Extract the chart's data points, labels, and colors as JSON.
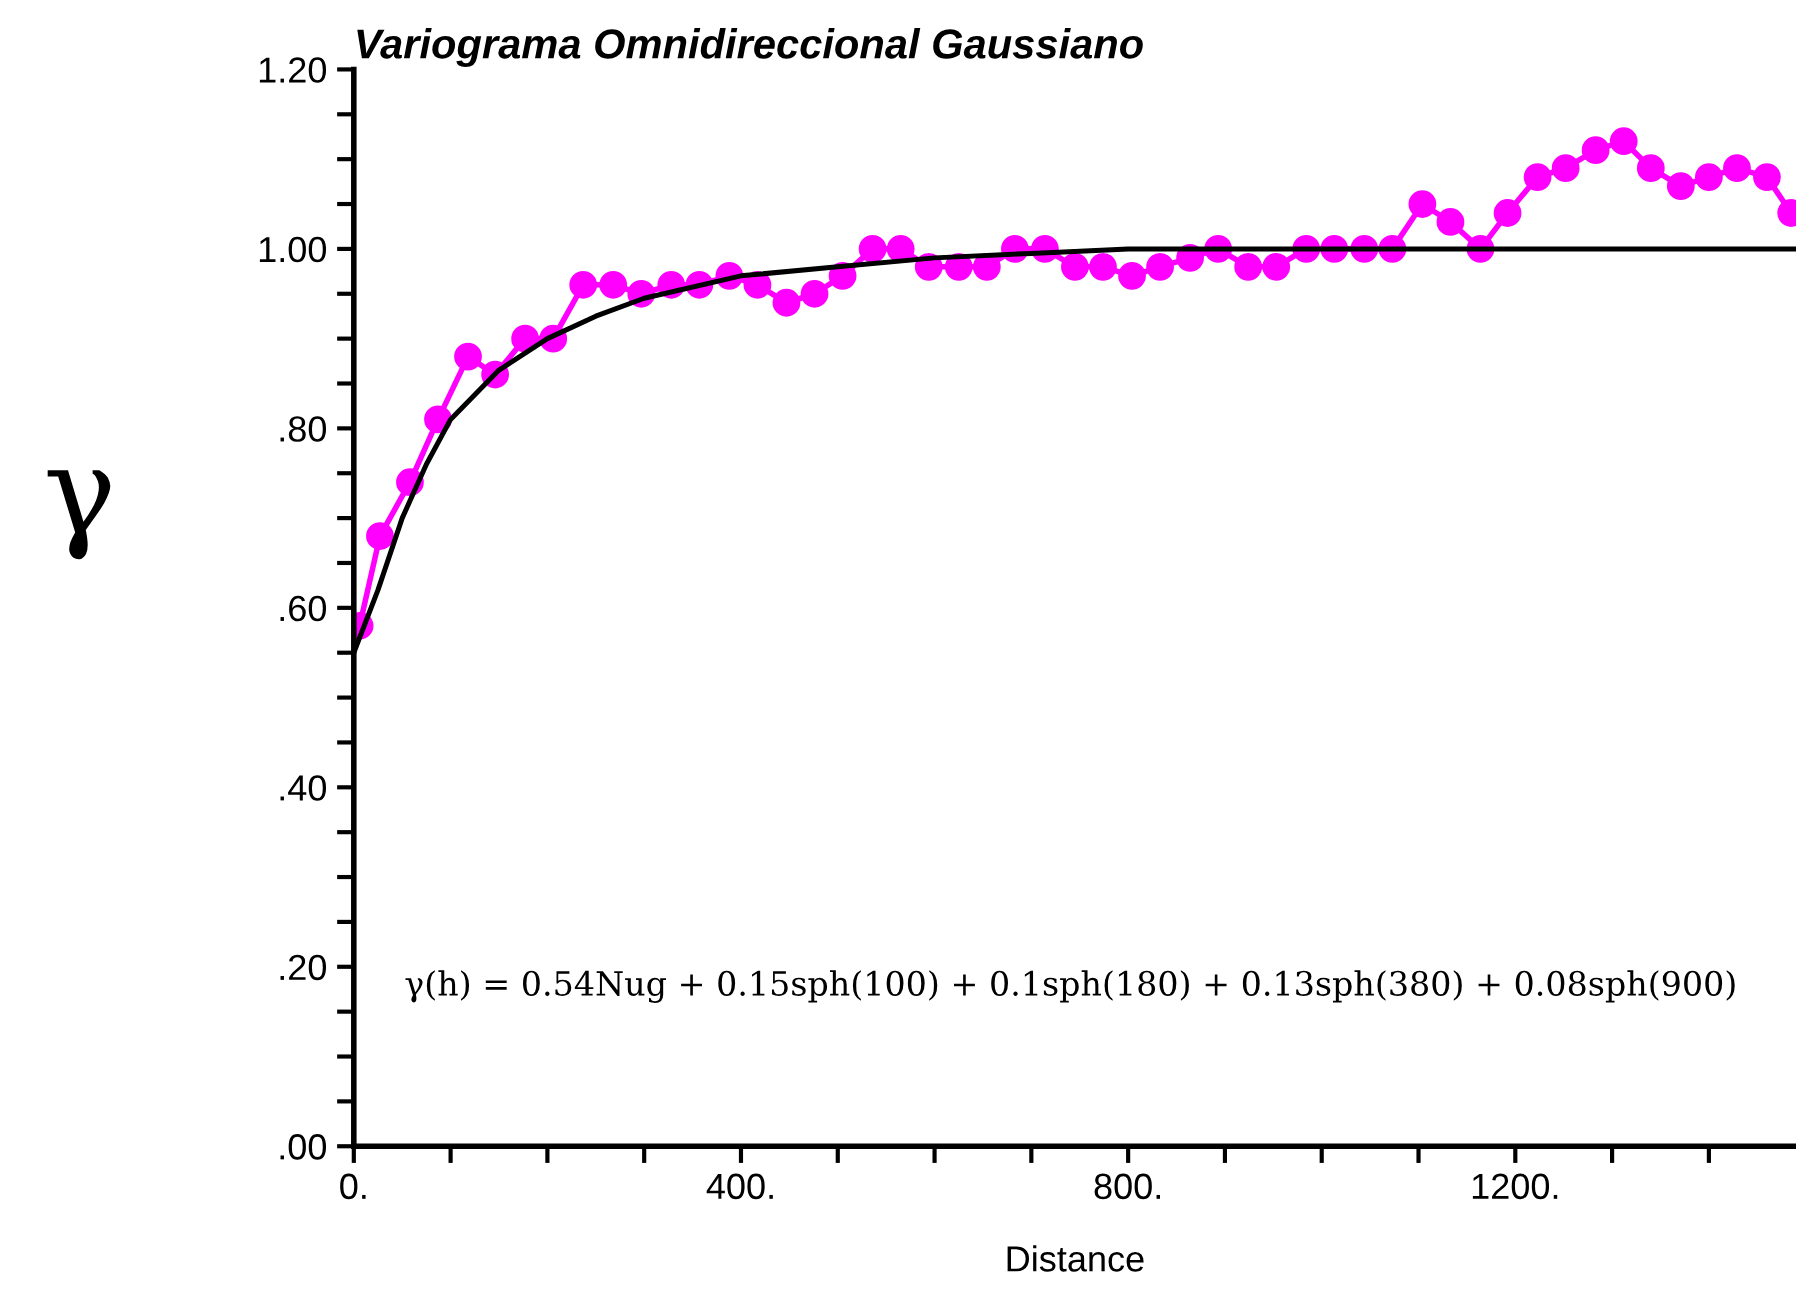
{
  "chart_data": {
    "type": "line",
    "title": "Variograma Omnidireccional Gaussiano",
    "xlabel": "Distance",
    "ylabel": "γ",
    "annotations": [
      "γ(h) = 0.54Nug + 0.15sph(100) + 0.1sph(180) + 0.13sph(380) + 0.08sph(900)"
    ],
    "series": [
      {
        "marker": "circle",
        "color": "#ff00ff",
        "x": [
          6,
          27,
          58,
          87,
          118,
          146,
          177,
          206,
          237,
          268,
          297,
          328,
          357,
          388,
          417,
          447,
          476,
          505,
          536,
          565,
          594,
          625,
          654,
          683,
          714,
          745,
          774,
          804,
          833,
          864,
          893,
          924,
          953,
          984,
          1013,
          1044,
          1073,
          1104,
          1133,
          1164,
          1192,
          1223,
          1252,
          1283,
          1312,
          1340,
          1371,
          1400,
          1429,
          1460,
          1485
        ],
        "values": [
          0.58,
          0.68,
          0.74,
          0.81,
          0.88,
          0.86,
          0.9,
          0.9,
          0.96,
          0.96,
          0.95,
          0.96,
          0.96,
          0.97,
          0.96,
          0.94,
          0.95,
          0.97,
          1.0,
          1.0,
          0.98,
          0.98,
          0.98,
          1.0,
          1.0,
          0.98,
          0.98,
          0.97,
          0.98,
          0.99,
          1.0,
          0.98,
          0.98,
          1.0,
          1.0,
          1.0,
          1.0,
          1.05,
          1.03,
          1.0,
          1.04,
          1.08,
          1.09,
          1.11,
          1.12,
          1.09,
          1.07,
          1.08,
          1.09,
          1.08,
          1.04
        ]
      },
      {
        "marker": "none",
        "color": "#000000",
        "x": [
          0,
          25,
          50,
          75,
          100,
          150,
          200,
          250,
          300,
          400,
          500,
          600,
          700,
          800,
          900,
          1490
        ],
        "values": [
          0.55,
          0.62,
          0.7,
          0.76,
          0.81,
          0.865,
          0.9,
          0.925,
          0.945,
          0.97,
          0.98,
          0.99,
          0.995,
          1.0,
          1.0,
          1.0
        ]
      }
    ],
    "xlim": [
      0,
      1490
    ],
    "ylim": [
      0,
      1.2
    ],
    "xticks": [
      {
        "value": 0,
        "label": "0."
      },
      {
        "value": 100,
        "label": null
      },
      {
        "value": 200,
        "label": null
      },
      {
        "value": 300,
        "label": null
      },
      {
        "value": 400,
        "label": "400."
      },
      {
        "value": 500,
        "label": null
      },
      {
        "value": 600,
        "label": null
      },
      {
        "value": 700,
        "label": null
      },
      {
        "value": 800,
        "label": "800."
      },
      {
        "value": 900,
        "label": null
      },
      {
        "value": 1000,
        "label": null
      },
      {
        "value": 1100,
        "label": null
      },
      {
        "value": 1200,
        "label": "1200."
      },
      {
        "value": 1300,
        "label": null
      },
      {
        "value": 1400,
        "label": null
      }
    ],
    "yticks": [
      {
        "value": 0,
        "label": ".00"
      },
      {
        "value": 0.05,
        "label": null
      },
      {
        "value": 0.1,
        "label": null
      },
      {
        "value": 0.15,
        "label": null
      },
      {
        "value": 0.2,
        "label": ".20"
      },
      {
        "value": 0.25,
        "label": null
      },
      {
        "value": 0.3,
        "label": null
      },
      {
        "value": 0.35,
        "label": null
      },
      {
        "value": 0.4,
        "label": ".40"
      },
      {
        "value": 0.45,
        "label": null
      },
      {
        "value": 0.5,
        "label": null
      },
      {
        "value": 0.55,
        "label": null
      },
      {
        "value": 0.6,
        "label": ".60"
      },
      {
        "value": 0.65,
        "label": null
      },
      {
        "value": 0.7,
        "label": null
      },
      {
        "value": 0.75,
        "label": null
      },
      {
        "value": 0.8,
        "label": ".80"
      },
      {
        "value": 0.85,
        "label": null
      },
      {
        "value": 0.9,
        "label": null
      },
      {
        "value": 0.95,
        "label": null
      },
      {
        "value": 1.0,
        "label": "1.00"
      },
      {
        "value": 1.05,
        "label": null
      },
      {
        "value": 1.1,
        "label": null
      },
      {
        "value": 1.15,
        "label": null
      },
      {
        "value": 1.2,
        "label": "1.20"
      }
    ],
    "grid": false,
    "legend": false
  }
}
